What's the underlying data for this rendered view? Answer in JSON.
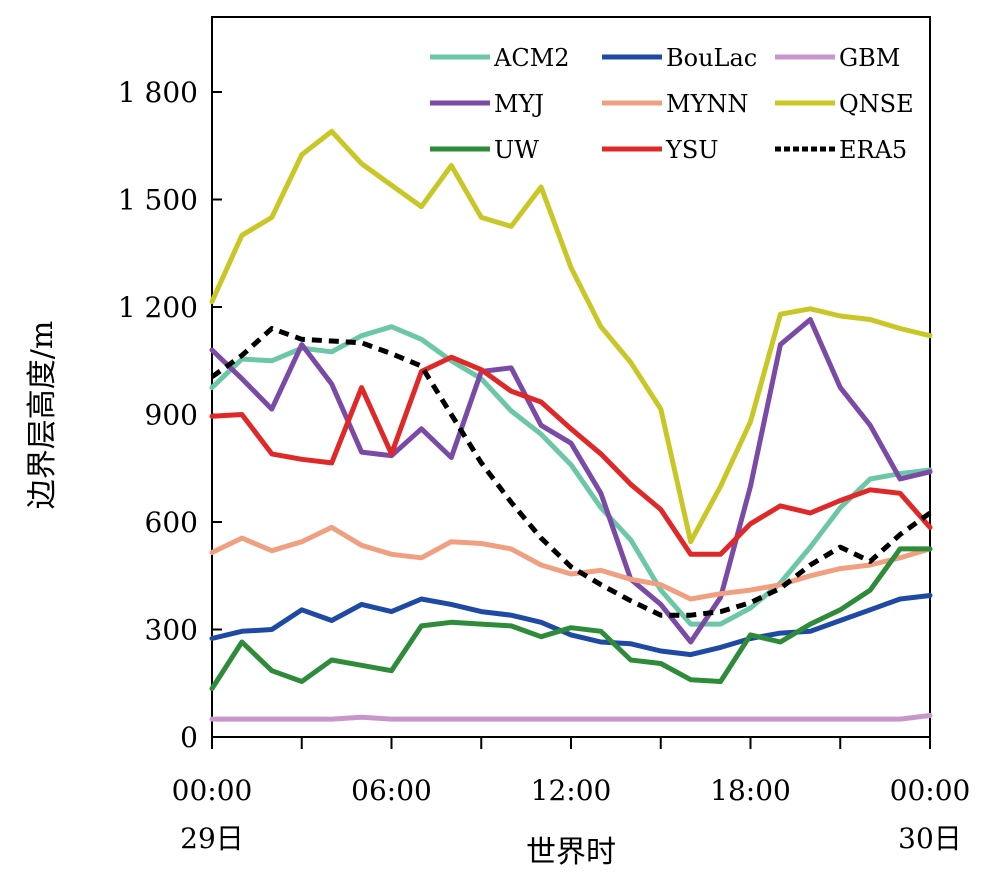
{
  "chart_data": {
    "type": "line",
    "title": "",
    "xlabel": "世界时",
    "ylabel": "边界层高度/m",
    "x_hours": [
      0,
      1,
      2,
      3,
      4,
      5,
      6,
      7,
      8,
      9,
      10,
      11,
      12,
      13,
      14,
      15,
      16,
      17,
      18,
      19,
      20,
      21,
      22,
      23,
      24
    ],
    "x_ticks": [
      {
        "hour": 0,
        "time": "00:00",
        "date": "29日"
      },
      {
        "hour": 6,
        "time": "06:00",
        "date": ""
      },
      {
        "hour": 12,
        "time": "12:00",
        "date": ""
      },
      {
        "hour": 18,
        "time": "18:00",
        "date": ""
      },
      {
        "hour": 24,
        "time": "00:00",
        "date": "30日"
      }
    ],
    "xlim": [
      0,
      24
    ],
    "ylim": [
      0,
      2000
    ],
    "y_ticks": [
      {
        "value": 0,
        "label": "0"
      },
      {
        "value": 300,
        "label": "300"
      },
      {
        "value": 600,
        "label": "600"
      },
      {
        "value": 900,
        "label": "900"
      },
      {
        "value": 1200,
        "label": "1 200"
      },
      {
        "value": 1500,
        "label": "1 500"
      },
      {
        "value": 1800,
        "label": "1 800"
      }
    ],
    "grid": false,
    "legend_position": "top-right",
    "series": [
      {
        "name": "ACM2",
        "color": "#6cc7a6",
        "dashed": false,
        "values": [
          975,
          1055,
          1050,
          1085,
          1075,
          1120,
          1145,
          1110,
          1050,
          1000,
          910,
          845,
          760,
          640,
          550,
          410,
          315,
          315,
          360,
          430,
          530,
          640,
          720,
          735,
          745
        ]
      },
      {
        "name": "BouLac",
        "color": "#1f4aa3",
        "dashed": false,
        "values": [
          275,
          295,
          300,
          355,
          325,
          370,
          350,
          385,
          370,
          350,
          340,
          320,
          285,
          265,
          260,
          240,
          230,
          250,
          275,
          290,
          295,
          325,
          355,
          385,
          395
        ]
      },
      {
        "name": "GBM",
        "color": "#c996cc",
        "dashed": false,
        "values": [
          50,
          50,
          50,
          50,
          50,
          55,
          50,
          50,
          50,
          50,
          50,
          50,
          50,
          50,
          50,
          50,
          50,
          50,
          50,
          50,
          50,
          50,
          50,
          50,
          60
        ]
      },
      {
        "name": "MYJ",
        "color": "#7a4aa6",
        "dashed": false,
        "values": [
          1080,
          1000,
          915,
          1095,
          985,
          795,
          785,
          860,
          780,
          1020,
          1030,
          870,
          820,
          680,
          440,
          370,
          265,
          390,
          700,
          1095,
          1165,
          975,
          870,
          720,
          740
        ]
      },
      {
        "name": "MYNN",
        "color": "#f0a080",
        "dashed": false,
        "values": [
          515,
          555,
          520,
          545,
          585,
          535,
          510,
          500,
          545,
          540,
          525,
          480,
          455,
          465,
          440,
          425,
          385,
          400,
          410,
          425,
          450,
          470,
          480,
          500,
          525
        ]
      },
      {
        "name": "QNSE",
        "color": "#c9c726",
        "dashed": false,
        "values": [
          1215,
          1400,
          1450,
          1625,
          1690,
          1600,
          1540,
          1480,
          1595,
          1450,
          1425,
          1535,
          1310,
          1145,
          1045,
          915,
          545,
          700,
          880,
          1180,
          1195,
          1175,
          1165,
          1140,
          1120
        ]
      },
      {
        "name": "UW",
        "color": "#2e8b3a",
        "dashed": false,
        "values": [
          135,
          265,
          185,
          155,
          215,
          200,
          185,
          310,
          320,
          315,
          310,
          280,
          305,
          295,
          215,
          205,
          160,
          155,
          285,
          265,
          315,
          355,
          410,
          525,
          525
        ]
      },
      {
        "name": "YSU",
        "color": "#e02828",
        "dashed": false,
        "values": [
          895,
          900,
          790,
          775,
          765,
          975,
          790,
          1020,
          1060,
          1025,
          965,
          935,
          860,
          790,
          705,
          635,
          510,
          510,
          595,
          645,
          625,
          660,
          690,
          680,
          585
        ]
      },
      {
        "name": "ERA5",
        "color": "#000000",
        "dashed": true,
        "values": [
          1005,
          1065,
          1140,
          1110,
          1105,
          1100,
          1070,
          1035,
          900,
          765,
          655,
          555,
          475,
          425,
          380,
          340,
          340,
          350,
          375,
          415,
          480,
          530,
          490,
          565,
          625
        ]
      }
    ]
  }
}
